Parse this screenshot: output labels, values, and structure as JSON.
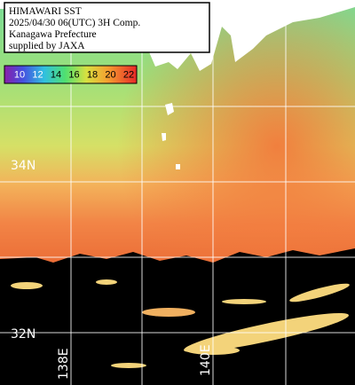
{
  "header": {
    "lines": [
      "HIMAWARI SST",
      "2025/04/30 06(UTC) 3H Comp.",
      "Kanagawa Prefecture",
      "supplied by JAXA"
    ]
  },
  "colorbar": {
    "labels": [
      10,
      12,
      14,
      16,
      18,
      20,
      22
    ]
  },
  "grid_labels": {
    "lat": [
      "34N",
      "32N"
    ],
    "lon": [
      "138E",
      "140E"
    ]
  }
}
